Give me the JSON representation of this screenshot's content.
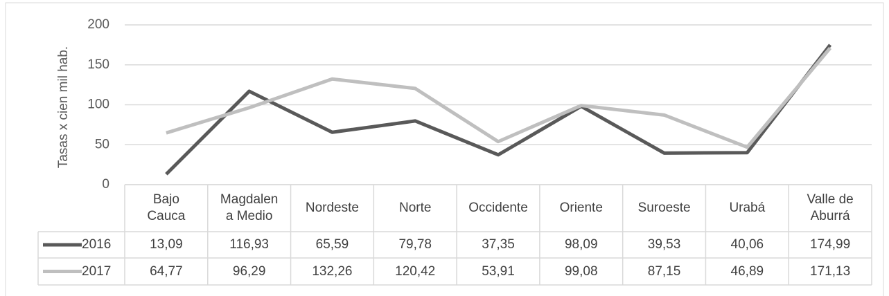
{
  "chart_data": {
    "type": "line",
    "y_label": "Tasas x cien mil  hab.",
    "categories": [
      "Bajo\nCauca",
      "Magdalen\na Medio",
      "Nordeste",
      "Norte",
      "Occidente",
      "Oriente",
      "Suroeste",
      "Urabá",
      "Valle de\nAburrá"
    ],
    "series": [
      {
        "name": "2016",
        "color": "#595959",
        "values": [
          13.09,
          116.93,
          65.59,
          79.78,
          37.35,
          98.09,
          39.53,
          40.06,
          174.99
        ],
        "value_labels": [
          "13,09",
          "116,93",
          "65,59",
          "79,78",
          "37,35",
          "98,09",
          "39,53",
          "40,06",
          "174,99"
        ]
      },
      {
        "name": "2017",
        "color": "#bfbfbf",
        "values": [
          64.77,
          96.29,
          132.26,
          120.42,
          53.91,
          99.08,
          87.15,
          46.89,
          171.13
        ],
        "value_labels": [
          "64,77",
          "96,29",
          "132,26",
          "120,42",
          "53,91",
          "99,08",
          "87,15",
          "46,89",
          "171,13"
        ]
      }
    ],
    "ylim": [
      0,
      200
    ],
    "yticks": [
      0,
      50,
      100,
      150,
      200
    ],
    "grid": true
  }
}
